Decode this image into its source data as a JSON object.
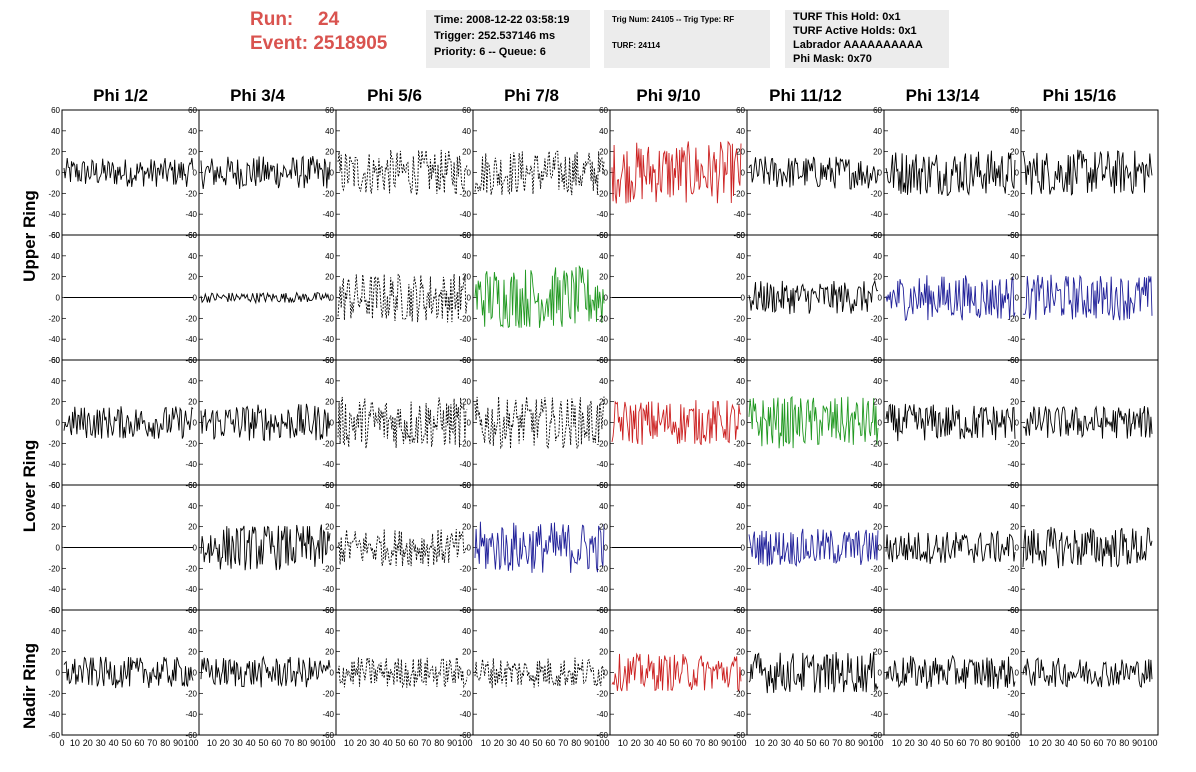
{
  "run": {
    "run_label": "Run:",
    "run_value": "24",
    "event_label": "Event:",
    "event_value": "2518905"
  },
  "time_box": {
    "time": "Time: 2008-12-22 03:58:19",
    "trigger": "Trigger: 252.537146 ms",
    "priority": "Priority: 6 -- Queue: 6"
  },
  "trig_box": {
    "trig_line": "Trig Num: 24105 -- Trig Type: RF",
    "turf_line": "TURF: 24114"
  },
  "turf_box": {
    "hold": "TURF This Hold: 0x1",
    "active": "TURF Active Holds: 0x1",
    "labrador": "Labrador AAAAAAAAAA",
    "phi_mask": "Phi Mask: 0x70"
  },
  "phi_headers": [
    "Phi 1/2",
    "Phi 3/4",
    "Phi 5/6",
    "Phi 7/8",
    "Phi 9/10",
    "Phi 11/12",
    "Phi 13/14",
    "Phi 15/16"
  ],
  "ring_labels": [
    "Upper Ring",
    "Lower Ring",
    "Nadir Ring"
  ],
  "chart_data": {
    "type": "line",
    "ylim": [
      -60,
      60
    ],
    "xlim": [
      0,
      100
    ],
    "y_ticks": [
      "60",
      "40",
      "20",
      "0",
      "-20",
      "-40",
      "-60"
    ],
    "x_ticks": [
      "0",
      "10",
      "20",
      "30",
      "40",
      "50",
      "60",
      "70",
      "80",
      "90",
      "100"
    ],
    "colors": {
      "black": "#000000",
      "red": "#cc2222",
      "green": "#229922",
      "blue": "#22229a"
    },
    "panel_styles": [
      [
        "black",
        "black",
        "dotted",
        "dotted",
        "red",
        "black",
        "black",
        "black"
      ],
      [
        "flat",
        "small",
        "dotted",
        "green",
        "flat",
        "black",
        "blue",
        "blue"
      ],
      [
        "black",
        "black",
        "dotted",
        "dotted",
        "red",
        "green",
        "black",
        "black"
      ],
      [
        "flat",
        "black",
        "dotted",
        "blue",
        "flat",
        "blue",
        "black",
        "black"
      ],
      [
        "black",
        "black",
        "dotted",
        "dotted",
        "red",
        "black",
        "black",
        "black"
      ]
    ],
    "panel_amplitudes": [
      [
        14,
        16,
        22,
        22,
        30,
        16,
        22,
        22
      ],
      [
        0,
        5,
        24,
        30,
        0,
        16,
        22,
        22
      ],
      [
        16,
        18,
        25,
        25,
        22,
        25,
        18,
        16
      ],
      [
        0,
        22,
        18,
        25,
        0,
        18,
        16,
        20
      ],
      [
        15,
        15,
        15,
        15,
        18,
        20,
        16,
        14
      ]
    ]
  }
}
